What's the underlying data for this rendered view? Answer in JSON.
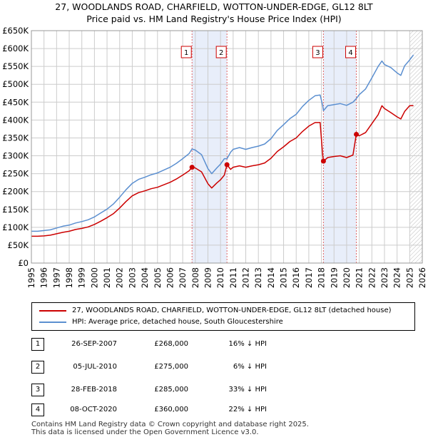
{
  "chart_data": {
    "type": "line",
    "title": "27, WOODLANDS ROAD, CHARFIELD, WOTTON-UNDER-EDGE, GL12 8LT",
    "subtitle": "Price paid vs. HM Land Registry's House Price Index (HPI)",
    "xlabel": "",
    "ylabel": "",
    "xlim": [
      1995,
      2026
    ],
    "ylim": [
      0,
      650000
    ],
    "x_ticks": [
      "1995",
      "1996",
      "1997",
      "1998",
      "1999",
      "2000",
      "2001",
      "2002",
      "2003",
      "2004",
      "2005",
      "2006",
      "2007",
      "2008",
      "2009",
      "2010",
      "2011",
      "2012",
      "2013",
      "2014",
      "2015",
      "2016",
      "2017",
      "2018",
      "2019",
      "2020",
      "2021",
      "2022",
      "2023",
      "2024",
      "2025",
      "2026"
    ],
    "y_ticks": [
      {
        "value": 0,
        "label": "£0"
      },
      {
        "value": 50000,
        "label": "£50K"
      },
      {
        "value": 100000,
        "label": "£100K"
      },
      {
        "value": 150000,
        "label": "£150K"
      },
      {
        "value": 200000,
        "label": "£200K"
      },
      {
        "value": 250000,
        "label": "£250K"
      },
      {
        "value": 300000,
        "label": "£300K"
      },
      {
        "value": 350000,
        "label": "£350K"
      },
      {
        "value": 400000,
        "label": "£400K"
      },
      {
        "value": 450000,
        "label": "£450K"
      },
      {
        "value": 500000,
        "label": "£500K"
      },
      {
        "value": 550000,
        "label": "£550K"
      },
      {
        "value": 600000,
        "label": "£600K"
      },
      {
        "value": 650000,
        "label": "£650K"
      }
    ],
    "grid": true,
    "forecast_from": 2025.0,
    "shaded_ranges": [
      [
        2007.74,
        2010.51
      ],
      [
        2018.16,
        2020.77
      ]
    ],
    "series": [
      {
        "name": "27, WOODLANDS ROAD, CHARFIELD, WOTTON-UNDER-EDGE, GL12 8LT (detached house)",
        "color": "#cc0000",
        "x": [
          1995.0,
          1995.5,
          1996.0,
          1996.5,
          1997.0,
          1997.5,
          1998.0,
          1998.5,
          1999.0,
          1999.5,
          2000.0,
          2000.5,
          2001.0,
          2001.5,
          2002.0,
          2002.5,
          2003.0,
          2003.5,
          2004.0,
          2004.5,
          2005.0,
          2005.5,
          2006.0,
          2006.5,
          2007.0,
          2007.5,
          2007.74,
          2008.0,
          2008.5,
          2009.0,
          2009.3,
          2009.7,
          2010.0,
          2010.3,
          2010.51,
          2010.8,
          2011.0,
          2011.5,
          2012.0,
          2012.5,
          2013.0,
          2013.5,
          2014.0,
          2014.5,
          2015.0,
          2015.5,
          2016.0,
          2016.5,
          2017.0,
          2017.5,
          2017.9,
          2018.1,
          2018.16,
          2018.5,
          2019.0,
          2019.5,
          2020.0,
          2020.5,
          2020.77,
          2021.0,
          2021.5,
          2022.0,
          2022.5,
          2022.8,
          2023.0,
          2023.5,
          2024.0,
          2024.3,
          2024.6,
          2025.0,
          2025.3
        ],
        "values": [
          75000,
          75000,
          76000,
          78000,
          82000,
          86000,
          89000,
          94000,
          97000,
          101000,
          108000,
          117000,
          127000,
          138000,
          154000,
          172000,
          188000,
          197000,
          202000,
          208000,
          212000,
          219000,
          226000,
          235000,
          246000,
          258000,
          268000,
          266000,
          255000,
          222000,
          210000,
          224000,
          233000,
          246000,
          275000,
          262000,
          268000,
          272000,
          268000,
          272000,
          275000,
          280000,
          293000,
          312000,
          325000,
          340000,
          350000,
          368000,
          383000,
          393000,
          393000,
          303000,
          285000,
          295000,
          298000,
          300000,
          295000,
          302000,
          360000,
          356000,
          365000,
          390000,
          415000,
          440000,
          432000,
          421000,
          409000,
          403000,
          424000,
          440000,
          440000
        ]
      },
      {
        "name": "HPI: Average price, detached house, South Gloucestershire",
        "color": "#5b8fd0",
        "x": [
          1995.0,
          1995.5,
          1996.0,
          1996.5,
          1997.0,
          1997.5,
          1998.0,
          1998.5,
          1999.0,
          1999.5,
          2000.0,
          2000.5,
          2001.0,
          2001.5,
          2002.0,
          2002.5,
          2003.0,
          2003.5,
          2004.0,
          2004.5,
          2005.0,
          2005.5,
          2006.0,
          2006.5,
          2007.0,
          2007.5,
          2007.74,
          2008.0,
          2008.5,
          2009.0,
          2009.3,
          2009.7,
          2010.0,
          2010.3,
          2010.51,
          2010.8,
          2011.0,
          2011.5,
          2012.0,
          2012.5,
          2013.0,
          2013.5,
          2014.0,
          2014.5,
          2015.0,
          2015.5,
          2016.0,
          2016.5,
          2017.0,
          2017.5,
          2017.9,
          2018.1,
          2018.16,
          2018.5,
          2019.0,
          2019.5,
          2020.0,
          2020.5,
          2020.77,
          2021.0,
          2021.5,
          2022.0,
          2022.5,
          2022.8,
          2023.0,
          2023.5,
          2024.0,
          2024.3,
          2024.6,
          2025.0,
          2025.3
        ],
        "values": [
          89000,
          89000,
          91000,
          93000,
          98000,
          103000,
          106000,
          112000,
          116000,
          121000,
          129000,
          140000,
          151000,
          165000,
          184000,
          205000,
          223000,
          234000,
          240000,
          247000,
          252000,
          260000,
          268000,
          279000,
          292000,
          306000,
          319000,
          316000,
          303000,
          264000,
          250000,
          266000,
          277000,
          292000,
          292000,
          310000,
          318000,
          323000,
          318000,
          323000,
          327000,
          333000,
          348000,
          371000,
          387000,
          404000,
          416000,
          438000,
          455000,
          468000,
          470000,
          441000,
          426000,
          440000,
          443000,
          446000,
          441000,
          450000,
          460000,
          471000,
          487000,
          518000,
          550000,
          565000,
          555000,
          547000,
          532000,
          525000,
          552000,
          568000,
          582000
        ]
      }
    ],
    "markers": [
      {
        "label": "1",
        "x": 2007.74,
        "y": 268000
      },
      {
        "label": "2",
        "x": 2010.51,
        "y": 275000
      },
      {
        "label": "3",
        "x": 2018.16,
        "y": 285000
      },
      {
        "label": "4",
        "x": 2020.77,
        "y": 360000
      }
    ]
  },
  "legend": {
    "property_label": "27, WOODLANDS ROAD, CHARFIELD, WOTTON-UNDER-EDGE, GL12 8LT (detached house)",
    "hpi_label": "HPI: Average price, detached house, South Gloucestershire"
  },
  "sales": [
    {
      "num": "1",
      "date": "26-SEP-2007",
      "price": "£268,000",
      "hpi": "16% ↓ HPI"
    },
    {
      "num": "2",
      "date": "05-JUL-2010",
      "price": "£275,000",
      "hpi": "6% ↓ HPI"
    },
    {
      "num": "3",
      "date": "28-FEB-2018",
      "price": "£285,000",
      "hpi": "33% ↓ HPI"
    },
    {
      "num": "4",
      "date": "08-OCT-2020",
      "price": "£360,000",
      "hpi": "22% ↓ HPI"
    }
  ],
  "footer": {
    "line1": "Contains HM Land Registry data © Crown copyright and database right 2025.",
    "line2": "This data is licensed under the Open Government Licence v3.0."
  },
  "colors": {
    "property": "#cc0000",
    "hpi": "#5b8fd0",
    "shade": "#e8eefa",
    "grid": "#cccccc",
    "vline": "#e06666"
  }
}
